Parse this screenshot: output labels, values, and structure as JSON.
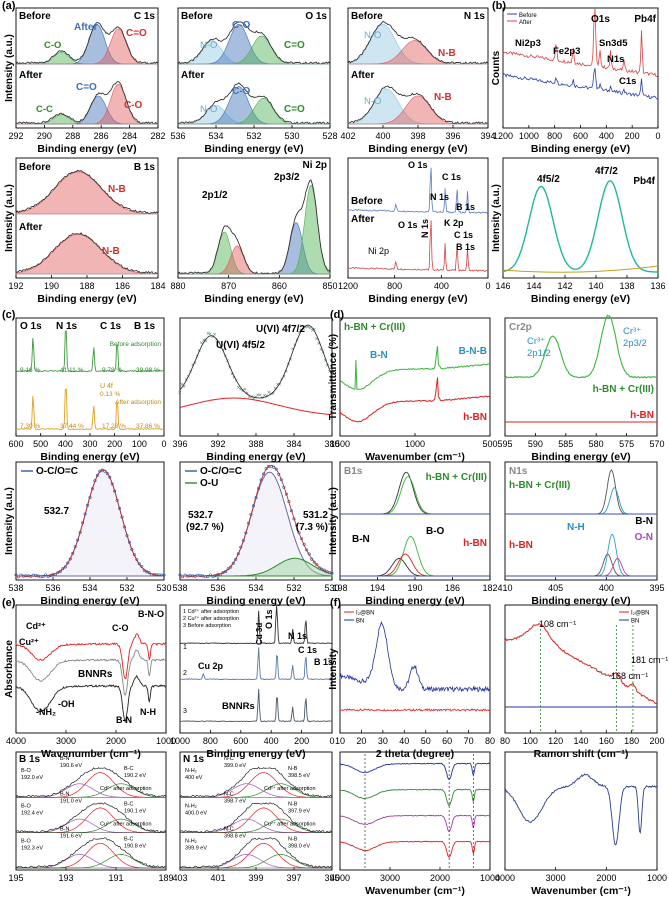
{
  "panel_labels": [
    "(a)",
    "(b)",
    "(c)",
    "(d)",
    "(e)",
    "(f)"
  ],
  "watermark": "",
  "chart_data": [
    {
      "id": "a1",
      "type": "area",
      "xlabel": "Binding energy (eV)",
      "ylabel": "Intensity (a.u.)",
      "xticks": [
        "292",
        "290",
        "288",
        "286",
        "284",
        "282"
      ],
      "xrange": [
        292,
        282
      ],
      "annotations": [
        "Before",
        "After",
        "C 1s",
        "C-O",
        "C=O",
        "C-C",
        "C=O",
        "C-O",
        "C-C"
      ],
      "series": [
        {
          "name": "Before",
          "peaks": [
            [
              288.8,
              0.25
            ],
            [
              286.3,
              0.85
            ],
            [
              284.8,
              0.75
            ]
          ]
        },
        {
          "name": "After",
          "peaks": [
            [
              288.8,
              0.2
            ],
            [
              286.2,
              0.6
            ],
            [
              284.8,
              0.85
            ]
          ]
        }
      ]
    },
    {
      "id": "a2",
      "type": "area",
      "xlabel": "Binding energy (eV)",
      "ylabel": "",
      "xticks": [
        "536",
        "534",
        "532",
        "530",
        "528"
      ],
      "xrange": [
        536,
        528
      ],
      "annotations": [
        "Before",
        "O 1s",
        "N-O",
        "C-O",
        "C=O",
        "After",
        "N-O",
        "C-O",
        "C=O"
      ],
      "series": [
        {
          "name": "Before",
          "peaks": [
            [
              534.2,
              0.5
            ],
            [
              532.8,
              0.85
            ],
            [
              531.6,
              0.6
            ]
          ]
        },
        {
          "name": "After",
          "peaks": [
            [
              534.0,
              0.4
            ],
            [
              532.8,
              0.8
            ],
            [
              531.5,
              0.55
            ]
          ]
        }
      ]
    },
    {
      "id": "a3",
      "type": "area",
      "xlabel": "Binding energy (eV)",
      "ylabel": "",
      "xticks": [
        "402",
        "400",
        "398",
        "396",
        "394"
      ],
      "xrange": [
        402,
        394
      ],
      "annotations": [
        "Before",
        "N 1s",
        "N-O",
        "N-B",
        "After",
        "N-O",
        "N-B"
      ],
      "series": [
        {
          "name": "Before",
          "peaks": [
            [
              400.0,
              0.85
            ],
            [
              398.2,
              0.5
            ]
          ]
        },
        {
          "name": "After",
          "peaks": [
            [
              399.8,
              0.75
            ],
            [
              398.0,
              0.6
            ]
          ]
        }
      ]
    },
    {
      "id": "b1",
      "type": "line",
      "xlabel": "Binding energy (eV)",
      "ylabel": "Counts",
      "xticks": [
        "1200",
        "1000",
        "800",
        "600",
        "400",
        "200",
        "0"
      ],
      "xrange": [
        1300,
        0
      ],
      "legend": [
        "Before",
        "After"
      ],
      "annotations": [
        "O1s",
        "Pb4f",
        "Ni2p3",
        "Fe2p3",
        "Sn3d5",
        "N1s",
        "C1s"
      ]
    },
    {
      "id": "a4",
      "type": "area",
      "xlabel": "Binding energy (eV)",
      "ylabel": "Intensity (a.u.)",
      "xticks": [
        "192",
        "190",
        "188",
        "186",
        "184"
      ],
      "xrange": [
        192,
        184
      ],
      "annotations": [
        "Before",
        "B 1s",
        "N-B",
        "After",
        "N-B"
      ],
      "series": [
        {
          "name": "Before",
          "peaks": [
            [
              188.5,
              0.9
            ]
          ]
        },
        {
          "name": "After",
          "peaks": [
            [
              188.5,
              0.85
            ]
          ]
        }
      ]
    },
    {
      "id": "a5",
      "type": "area",
      "xlabel": "Binding energy (eV)",
      "ylabel": "",
      "xticks": [
        "880",
        "870",
        "860",
        "850"
      ],
      "xrange": [
        884,
        848
      ],
      "annotations": [
        "Ni 2p",
        "2p1/2",
        "2p3/2"
      ],
      "series": [
        {
          "name": "Ni 2p",
          "peaks": [
            [
              873,
              0.45
            ],
            [
              870,
              0.3
            ],
            [
              856,
              0.55
            ],
            [
              852.5,
              0.95
            ]
          ]
        }
      ]
    },
    {
      "id": "a6",
      "type": "line",
      "xlabel": "Binding energy (eV)",
      "ylabel": "",
      "xticks": [
        "1200",
        "800",
        "400",
        "0"
      ],
      "xrange": [
        1300,
        0
      ],
      "annotations": [
        "Before",
        "O 1s",
        "C 1s",
        "N 1s",
        "B 1s",
        "After",
        "O 1s",
        "N 1s",
        "K 2p",
        "C 1s",
        "B 1s",
        "Ni 2p"
      ]
    },
    {
      "id": "b2",
      "type": "line",
      "xlabel": "Binding energy (eV)",
      "ylabel": "Intensity (a.u.)",
      "xticks": [
        "146",
        "144",
        "142",
        "140",
        "138",
        "136"
      ],
      "xrange": [
        146,
        135
      ],
      "annotations": [
        "4f5/2",
        "4f7/2",
        "Pb4f"
      ],
      "series": [
        {
          "name": "Pb4f",
          "peaks": [
            [
              143.3,
              0.75
            ],
            [
              138.4,
              0.8
            ]
          ]
        }
      ]
    },
    {
      "id": "c1",
      "type": "line",
      "xlabel": "Binding energy (eV)",
      "ylabel": "",
      "xticks": [
        "600",
        "500",
        "400",
        "300",
        "200",
        "100",
        "0"
      ],
      "xrange": [
        600,
        0
      ],
      "annotations": [
        "O 1s",
        "N 1s",
        "C 1s",
        "B 1s",
        "Before adsorption",
        "After adsorption",
        "U 4f",
        "9.16 %",
        "41.11 %",
        "9.78 %",
        "39.98 %",
        "7.30 %",
        "37.44 %",
        "17.23 %",
        "37.86 %",
        "0.13 %"
      ]
    },
    {
      "id": "c2",
      "type": "scatter",
      "xlabel": "Binding energy (eV)",
      "ylabel": "",
      "xticks": [
        "396",
        "392",
        "388",
        "384",
        "380"
      ],
      "xrange": [
        396,
        379
      ],
      "annotations": [
        "U(VI) 4f7/2",
        "U(VI) 4f5/2"
      ],
      "series": [
        {
          "name": "U(VI)",
          "peaks": [
            [
              392.5,
              0.6
            ],
            [
              381.7,
              0.7
            ]
          ]
        }
      ]
    },
    {
      "id": "d1",
      "type": "line",
      "xlabel": "Wavenumber (cm⁻¹)",
      "ylabel": "Transmittance (%)",
      "xticks": [
        "1500",
        "1000",
        "500"
      ],
      "xrange": [
        1500,
        450
      ],
      "legend": [
        "h-BN + Cr(III)",
        "h-BN"
      ],
      "annotations": [
        "B-N",
        "B-N-B"
      ]
    },
    {
      "id": "d2",
      "type": "line",
      "xlabel": "Binding energy (eV)",
      "ylabel": "",
      "xticks": [
        "595",
        "590",
        "585",
        "580",
        "575",
        "570"
      ],
      "xrange": [
        595,
        569
      ],
      "annotations": [
        "Cr2p",
        "Cr³⁺",
        "2p1/2",
        "Cr³⁺",
        "2p3/2",
        "h-BN + Cr(III)",
        "h-BN"
      ],
      "series": [
        {
          "name": "h-BN + Cr(III)",
          "peaks": [
            [
              586.8,
              0.5
            ],
            [
              577.3,
              0.75
            ]
          ]
        }
      ]
    },
    {
      "id": "c3",
      "type": "area",
      "xlabel": "Binding energy (eV)",
      "ylabel": "Intensity (a.u.)",
      "xticks": [
        "538",
        "536",
        "534",
        "532",
        "530"
      ],
      "xrange": [
        538,
        529
      ],
      "legend": [
        "O-C/O=C"
      ],
      "annotations": [
        "532.7"
      ],
      "series": [
        {
          "name": "O-C/O=C",
          "peaks": [
            [
              532.7,
              0.9
            ]
          ]
        }
      ]
    },
    {
      "id": "c4",
      "type": "area",
      "xlabel": "Binding energy (eV)",
      "ylabel": "",
      "xticks": [
        "538",
        "536",
        "534",
        "532",
        "530"
      ],
      "xrange": [
        538,
        529
      ],
      "legend": [
        "O-C/O=C",
        "O-U"
      ],
      "annotations": [
        "532.7",
        "(92.7 %)",
        "531.2",
        "(7.3 %)"
      ],
      "series": [
        {
          "name": "O-C/O=C",
          "peaks": [
            [
              532.7,
              0.88
            ]
          ]
        },
        {
          "name": "O-U",
          "peaks": [
            [
              531.2,
              0.15
            ]
          ]
        }
      ]
    },
    {
      "id": "d3",
      "type": "line",
      "xlabel": "Binding energy (eV)",
      "ylabel": "Intensity (a.u.)",
      "xticks": [
        "198",
        "194",
        "190",
        "186",
        "182"
      ],
      "xrange": [
        198,
        181
      ],
      "annotations": [
        "B1s",
        "h-BN + Cr(III)",
        "B-N",
        "B-O",
        "h-BN"
      ]
    },
    {
      "id": "d4",
      "type": "line",
      "xlabel": "Binding energy (eV)",
      "ylabel": "",
      "xticks": [
        "410",
        "405",
        "400",
        "395"
      ],
      "xrange": [
        412,
        392
      ],
      "annotations": [
        "N1s",
        "h-BN + Cr(III)",
        "h-BN",
        "N-H",
        "B-N",
        "O-N"
      ]
    },
    {
      "id": "e1",
      "type": "line",
      "xlabel": "Wavenumber (cm⁻¹)",
      "ylabel": "Absorbance",
      "xticks": [
        "4000",
        "3000",
        "2000",
        "1000"
      ],
      "xrange": [
        4000,
        400
      ],
      "annotations": [
        "Cd²⁺",
        "Cu²⁺",
        "BNNRs",
        "C-O",
        "B-N-O",
        "-NH₂",
        "-OH",
        "B-N",
        "N-H"
      ]
    },
    {
      "id": "e2",
      "type": "line",
      "xlabel": "Binding energy (eV)",
      "ylabel": "",
      "xticks": [
        "1000",
        "800",
        "600",
        "400",
        "200",
        "0"
      ],
      "xrange": [
        1100,
        0
      ],
      "legend": [
        "1 Cd²⁺ after adsorption",
        "2 Cu²⁺ after adsorption",
        "3 Before adsorption"
      ],
      "annotations": [
        "1",
        "2",
        "3",
        "Cu 2p",
        "BNNRs",
        "Cd 3d",
        "O 1s",
        "N 1s",
        "C 1s",
        "B 1s"
      ]
    },
    {
      "id": "f1",
      "type": "line",
      "xlabel": "2 theta (degree)",
      "ylabel": "Intensity",
      "xticks": [
        "10",
        "20",
        "30",
        "40",
        "50",
        "60",
        "70",
        "80"
      ],
      "xrange": [
        5,
        80
      ],
      "legend": [
        "I₂@BN",
        "BN"
      ]
    },
    {
      "id": "f2",
      "type": "line",
      "xlabel": "Ramon shift (cm⁻¹)",
      "ylabel": "",
      "xticks": [
        "80",
        "100",
        "120",
        "140",
        "160",
        "180",
        "200"
      ],
      "xrange": [
        80,
        200
      ],
      "legend": [
        "I₂@BN",
        "BN"
      ],
      "annotations": [
        "108 cm⁻¹",
        "168 cm⁻¹",
        "181 cm⁻¹"
      ]
    },
    {
      "id": "e3",
      "type": "area",
      "xlabel": "",
      "ylabel": "",
      "xticks": [
        "195",
        "193",
        "191",
        "189"
      ],
      "xrange": [
        195,
        188.5
      ],
      "annotations": [
        "B 1s",
        "B-N",
        "190.6 eV",
        "B-O",
        "192.0 eV",
        "B-C",
        "190.2 eV",
        "Cd²⁺ after adsorption",
        "B-N",
        "191.0 eV",
        "B-O",
        "192.4 eV",
        "B-C",
        "190.1 eV",
        "Cu²⁺ after adsorption",
        "B-N",
        "191.6 eV",
        "B-O",
        "192.3 eV",
        "B-C",
        "190.8 eV"
      ]
    },
    {
      "id": "e4",
      "type": "area",
      "xlabel": "",
      "ylabel": "",
      "xticks": [
        "403",
        "401",
        "399",
        "397",
        "395"
      ],
      "xrange": [
        403,
        395
      ],
      "annotations": [
        "N 1s",
        "N-C",
        "399.0 eV",
        "N-H₂",
        "400 eV",
        "N-B",
        "398.5 eV",
        "Cd²⁺ after adsorption",
        "N-C",
        "398.7 eV",
        "N-H₂",
        "400.0 eV",
        "N-B",
        "397.9 eV",
        "Cu²⁺ after adsorption",
        "N-C",
        "398.8 eV",
        "N-H₂",
        "399.9 eV",
        "N-B",
        "398.0 eV"
      ]
    },
    {
      "id": "f3",
      "type": "line",
      "xlabel": "Wavenumber (cm⁻¹)",
      "ylabel": "",
      "xticks": [
        "4000",
        "3000",
        "2000",
        "1000"
      ],
      "xrange": [
        4000,
        400
      ]
    },
    {
      "id": "f4",
      "type": "line",
      "xlabel": "Wavenumber (cm⁻¹)",
      "ylabel": "",
      "xticks": [
        "4000",
        "3000",
        "2000",
        "1000"
      ],
      "xrange": [
        4000,
        400
      ]
    }
  ]
}
